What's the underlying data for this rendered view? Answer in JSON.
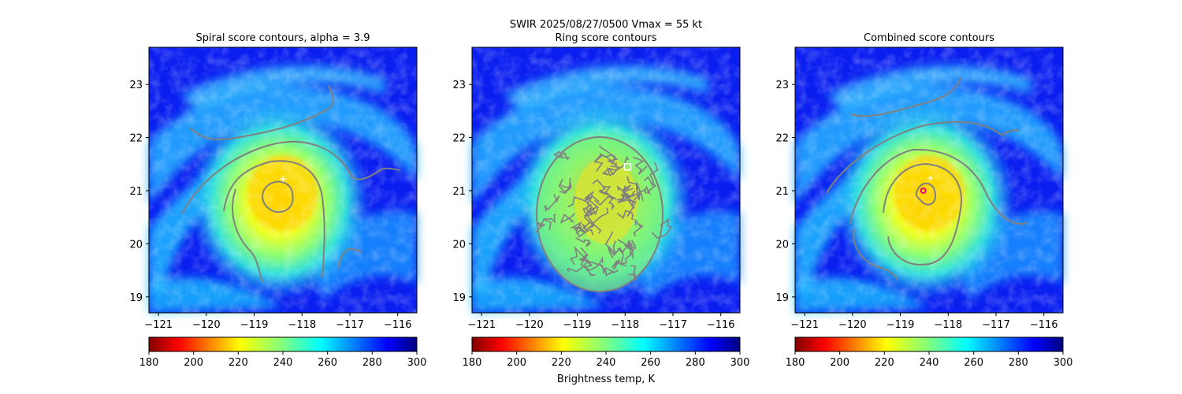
{
  "chart_data": {
    "type": "heatmap",
    "suptitle": "SWIR  2025/08/27/0500    Vmax = 55 kt",
    "colorbar_label": "Brightness temp, K",
    "colormap": "jet_r",
    "colorbar": {
      "range": [
        180,
        300
      ],
      "ticks": [
        "180",
        "200",
        "220",
        "240",
        "260",
        "280",
        "300"
      ]
    },
    "xlim": [
      -121.2,
      -115.6
    ],
    "ylim": [
      18.7,
      23.7
    ],
    "xticks": [
      "−121",
      "−120",
      "−119",
      "−118",
      "−117",
      "−116"
    ],
    "xtick_values": [
      -121,
      -120,
      -119,
      -118,
      -117,
      -116
    ],
    "yticks": [
      "19",
      "20",
      "21",
      "22",
      "23"
    ],
    "ytick_values": [
      19,
      20,
      21,
      22,
      23
    ],
    "panels": [
      {
        "title": "Spiral score contours, alpha =  3.9",
        "marker": {
          "type": "plus",
          "x": -118.4,
          "y": 21.22,
          "color": "#ffffff"
        }
      },
      {
        "title": "Ring score contours",
        "marker": {
          "type": "square",
          "x": -117.95,
          "y": 21.45,
          "color": "#ffffff"
        }
      },
      {
        "title": "Combined score contours",
        "marker": {
          "type": "circle",
          "x": -118.52,
          "y": 21.0,
          "color": "#e6007e"
        }
      }
    ],
    "contour_color": "#808080"
  }
}
